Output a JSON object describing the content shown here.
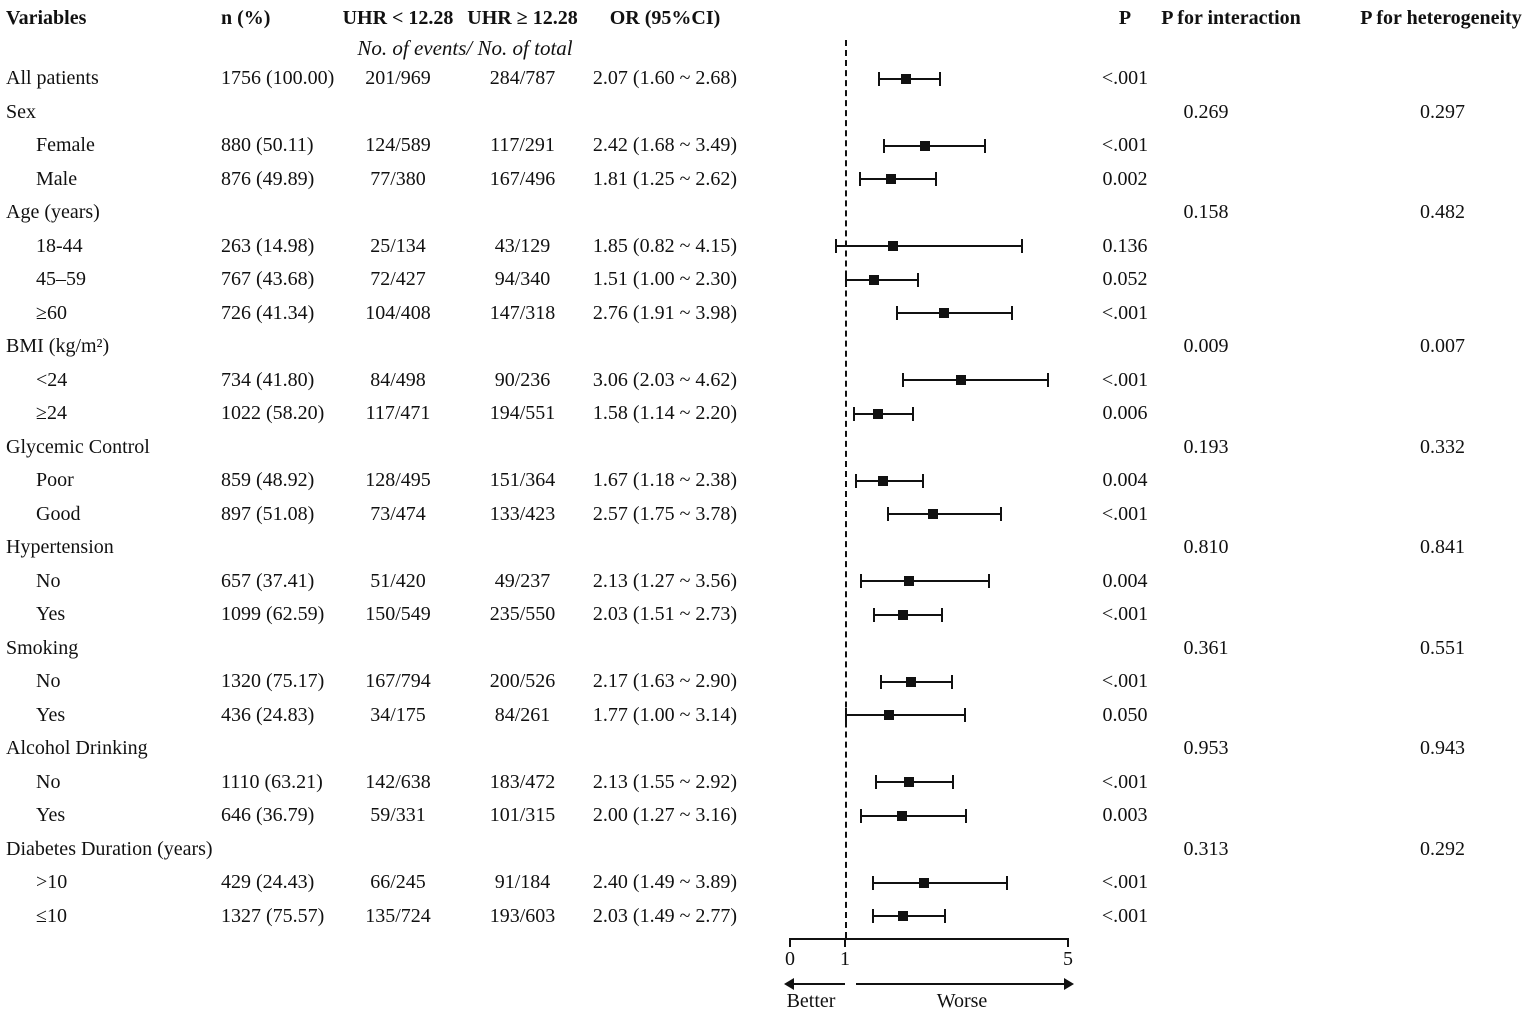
{
  "header": {
    "variables": "Variables",
    "n_pct": "n (%)",
    "uhr_low": "UHR < 12.28",
    "uhr_high": "UHR ≥  12.28",
    "or_ci": "OR (95%CI)",
    "p": "P",
    "p_interaction": "P for interaction",
    "p_heterogeneity": "P for heterogeneity"
  },
  "subheader": "No. of events/ No. of total",
  "colors": {
    "ink": "#111111",
    "background": "#ffffff"
  },
  "chart_data": {
    "type": "forest",
    "title": "",
    "xlabel_left": "Better",
    "xlabel_right": "Worse",
    "x_axis": {
      "min": 0,
      "max": 5,
      "ticks": [
        0,
        1,
        5
      ],
      "reference_line": 1
    },
    "rows": [
      {
        "label": "All patients",
        "indent": 0,
        "n_pct": "1756 (100.00)",
        "uhr_low": "201/969",
        "uhr_high": "284/787",
        "or_ci": "2.07 (1.60 ~ 2.68)",
        "or": 2.07,
        "lo": 1.6,
        "hi": 2.68,
        "p": "<.001"
      },
      {
        "label": "Sex",
        "indent": 0,
        "p_interaction": "0.269",
        "p_heterogeneity": "0.297"
      },
      {
        "label": "Female",
        "indent": 1,
        "n_pct": "880 (50.11)",
        "uhr_low": "124/589",
        "uhr_high": "117/291",
        "or_ci": "2.42 (1.68 ~ 3.49)",
        "or": 2.42,
        "lo": 1.68,
        "hi": 3.49,
        "p": "<.001"
      },
      {
        "label": "Male",
        "indent": 1,
        "n_pct": "876 (49.89)",
        "uhr_low": "77/380",
        "uhr_high": "167/496",
        "or_ci": "1.81 (1.25 ~ 2.62)",
        "or": 1.81,
        "lo": 1.25,
        "hi": 2.62,
        "p": "0.002"
      },
      {
        "label": "Age (years)",
        "indent": 0,
        "p_interaction": "0.158",
        "p_heterogeneity": "0.482"
      },
      {
        "label": "18-44",
        "indent": 1,
        "n_pct": "263 (14.98)",
        "uhr_low": "25/134",
        "uhr_high": "43/129",
        "or_ci": "1.85 (0.82 ~ 4.15)",
        "or": 1.85,
        "lo": 0.82,
        "hi": 4.15,
        "p": "0.136"
      },
      {
        "label": "45–59",
        "indent": 1,
        "n_pct": "767 (43.68)",
        "uhr_low": "72/427",
        "uhr_high": "94/340",
        "or_ci": "1.51 (1.00 ~ 2.30)",
        "or": 1.51,
        "lo": 1.0,
        "hi": 2.3,
        "p": "0.052"
      },
      {
        "label": "≥60",
        "indent": 1,
        "n_pct": "726 (41.34)",
        "uhr_low": "104/408",
        "uhr_high": "147/318",
        "or_ci": "2.76 (1.91 ~ 3.98)",
        "or": 2.76,
        "lo": 1.91,
        "hi": 3.98,
        "p": "<.001"
      },
      {
        "label": "BMI (kg/m²)",
        "indent": 0,
        "p_interaction": "0.009",
        "p_heterogeneity": "0.007"
      },
      {
        "label": "<24",
        "indent": 1,
        "n_pct": "734 (41.80)",
        "uhr_low": "84/498",
        "uhr_high": "90/236",
        "or_ci": "3.06 (2.03 ~ 4.62)",
        "or": 3.06,
        "lo": 2.03,
        "hi": 4.62,
        "p": "<.001"
      },
      {
        "label": "≥24",
        "indent": 1,
        "n_pct": "1022 (58.20)",
        "uhr_low": "117/471",
        "uhr_high": "194/551",
        "or_ci": "1.58 (1.14 ~ 2.20)",
        "or": 1.58,
        "lo": 1.14,
        "hi": 2.2,
        "p": "0.006"
      },
      {
        "label": "Glycemic Control",
        "indent": 0,
        "p_interaction": "0.193",
        "p_heterogeneity": "0.332"
      },
      {
        "label": "Poor",
        "indent": 1,
        "n_pct": "859 (48.92)",
        "uhr_low": "128/495",
        "uhr_high": "151/364",
        "or_ci": "1.67 (1.18 ~ 2.38)",
        "or": 1.67,
        "lo": 1.18,
        "hi": 2.38,
        "p": "0.004"
      },
      {
        "label": "Good",
        "indent": 1,
        "n_pct": "897 (51.08)",
        "uhr_low": "73/474",
        "uhr_high": "133/423",
        "or_ci": "2.57 (1.75 ~ 3.78)",
        "or": 2.57,
        "lo": 1.75,
        "hi": 3.78,
        "p": "<.001"
      },
      {
        "label": "Hypertension",
        "indent": 0,
        "p_interaction": "0.810",
        "p_heterogeneity": "0.841"
      },
      {
        "label": "No",
        "indent": 1,
        "n_pct": "657 (37.41)",
        "uhr_low": "51/420",
        "uhr_high": "49/237",
        "or_ci": "2.13 (1.27 ~ 3.56)",
        "or": 2.13,
        "lo": 1.27,
        "hi": 3.56,
        "p": "0.004"
      },
      {
        "label": "Yes",
        "indent": 1,
        "n_pct": "1099 (62.59)",
        "uhr_low": "150/549",
        "uhr_high": "235/550",
        "or_ci": "2.03 (1.51 ~ 2.73)",
        "or": 2.03,
        "lo": 1.51,
        "hi": 2.73,
        "p": "<.001"
      },
      {
        "label": "Smoking",
        "indent": 0,
        "p_interaction": "0.361",
        "p_heterogeneity": "0.551"
      },
      {
        "label": "No",
        "indent": 1,
        "n_pct": "1320 (75.17)",
        "uhr_low": "167/794",
        "uhr_high": "200/526",
        "or_ci": "2.17 (1.63 ~ 2.90)",
        "or": 2.17,
        "lo": 1.63,
        "hi": 2.9,
        "p": "<.001"
      },
      {
        "label": "Yes",
        "indent": 1,
        "n_pct": "436 (24.83)",
        "uhr_low": "34/175",
        "uhr_high": "84/261",
        "or_ci": "1.77 (1.00 ~ 3.14)",
        "or": 1.77,
        "lo": 1.0,
        "hi": 3.14,
        "p": "0.050"
      },
      {
        "label": "Alcohol Drinking",
        "indent": 0,
        "p_interaction": "0.953",
        "p_heterogeneity": "0.943"
      },
      {
        "label": "No",
        "indent": 1,
        "n_pct": "1110 (63.21)",
        "uhr_low": "142/638",
        "uhr_high": "183/472",
        "or_ci": "2.13 (1.55 ~ 2.92)",
        "or": 2.13,
        "lo": 1.55,
        "hi": 2.92,
        "p": "<.001"
      },
      {
        "label": "Yes",
        "indent": 1,
        "n_pct": "646 (36.79)",
        "uhr_low": "59/331",
        "uhr_high": "101/315",
        "or_ci": "2.00 (1.27 ~ 3.16)",
        "or": 2.0,
        "lo": 1.27,
        "hi": 3.16,
        "p": "0.003"
      },
      {
        "label": "Diabetes Duration (years)",
        "indent": 0,
        "p_interaction": "0.313",
        "p_heterogeneity": "0.292"
      },
      {
        "label": ">10",
        "indent": 1,
        "n_pct": "429 (24.43)",
        "uhr_low": "66/245",
        "uhr_high": "91/184",
        "or_ci": "2.40 (1.49 ~ 3.89)",
        "or": 2.4,
        "lo": 1.49,
        "hi": 3.89,
        "p": "<.001"
      },
      {
        "label": "≤10",
        "indent": 1,
        "n_pct": "1327 (75.57)",
        "uhr_low": "135/724",
        "uhr_high": "193/603",
        "or_ci": "2.03 (1.49 ~ 2.77)",
        "or": 2.03,
        "lo": 1.49,
        "hi": 2.77,
        "p": "<.001"
      }
    ]
  }
}
